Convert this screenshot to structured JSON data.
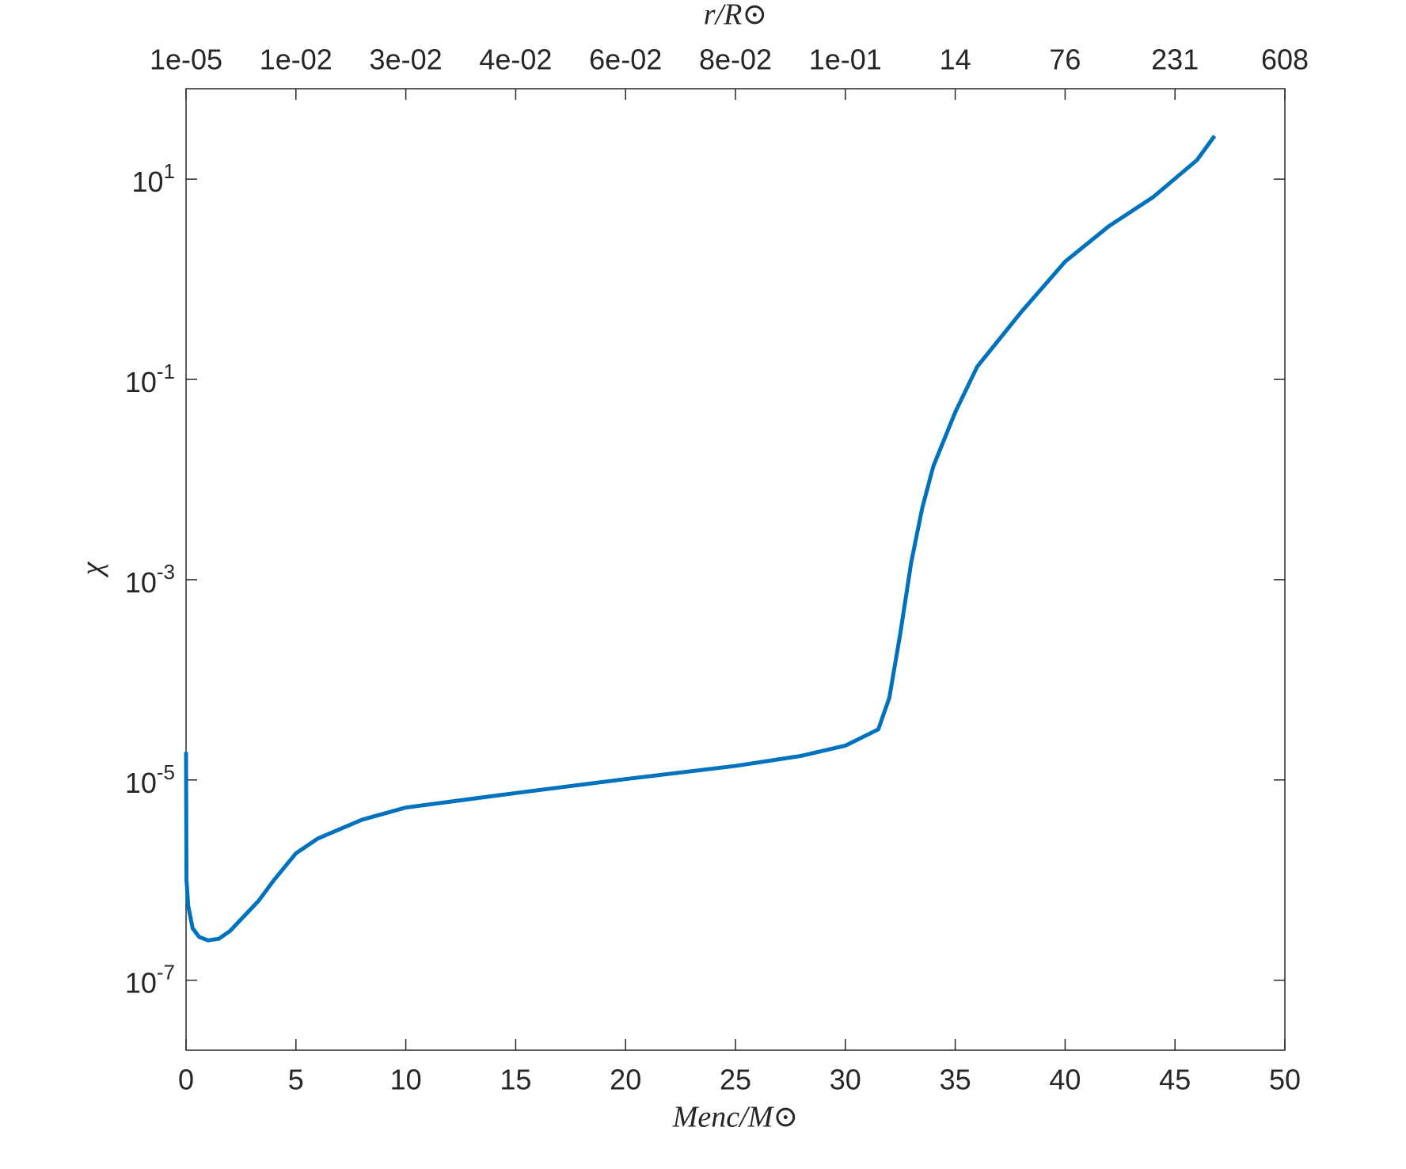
{
  "chart_data": {
    "type": "line",
    "x_label": "Menc/M⊙",
    "x2_label": "r/R⊙",
    "y_label": "χ",
    "y_log": true,
    "xlim": [
      0,
      50
    ],
    "xticks": [
      0,
      5,
      10,
      15,
      20,
      25,
      30,
      35,
      40,
      45,
      50
    ],
    "x2ticks": [
      {
        "value": 0,
        "label": "1e-05"
      },
      {
        "value": 5,
        "label": "1e-02"
      },
      {
        "value": 10,
        "label": "3e-02"
      },
      {
        "value": 15,
        "label": "4e-02"
      },
      {
        "value": 20,
        "label": "6e-02"
      },
      {
        "value": 25,
        "label": "8e-02"
      },
      {
        "value": 30,
        "label": "1e-01"
      },
      {
        "value": 35,
        "label": "14"
      },
      {
        "value": 40,
        "label": "76"
      },
      {
        "value": 45,
        "label": "231"
      },
      {
        "value": 50,
        "label": "608"
      }
    ],
    "ylim": [
      2e-08,
      80
    ],
    "yticks": [
      {
        "value": 10,
        "label": "10^1"
      },
      {
        "value": 0.1,
        "label": "10^-1"
      },
      {
        "value": 0.001,
        "label": "10^-3"
      },
      {
        "value": 1e-05,
        "label": "10^-5"
      },
      {
        "value": 1e-07,
        "label": "10^-7"
      }
    ],
    "series": [
      {
        "color": "#0072bd",
        "x": [
          0,
          0.02,
          0.1,
          0.3,
          0.6,
          1,
          1.5,
          2,
          3.3,
          4,
          5,
          6,
          8,
          10,
          15,
          20,
          25,
          28,
          30,
          31.5,
          32,
          32.5,
          33,
          33.5,
          34,
          35,
          36,
          38,
          40,
          42,
          44,
          46,
          46.8
        ],
        "values": [
          1.9e-05,
          1e-06,
          5.5e-07,
          3.3e-07,
          2.7e-07,
          2.5e-07,
          2.6e-07,
          3.1e-07,
          6.2e-07,
          1e-06,
          1.85e-06,
          2.6e-06,
          4e-06,
          5.3e-06,
          7.4e-06,
          1.02e-05,
          1.38e-05,
          1.74e-05,
          2.2e-05,
          3.2e-05,
          6.6e-05,
          0.00029,
          0.0015,
          0.0052,
          0.0135,
          0.047,
          0.134,
          0.47,
          1.5,
          3.4,
          6.6,
          15.5,
          27
        ]
      }
    ]
  }
}
